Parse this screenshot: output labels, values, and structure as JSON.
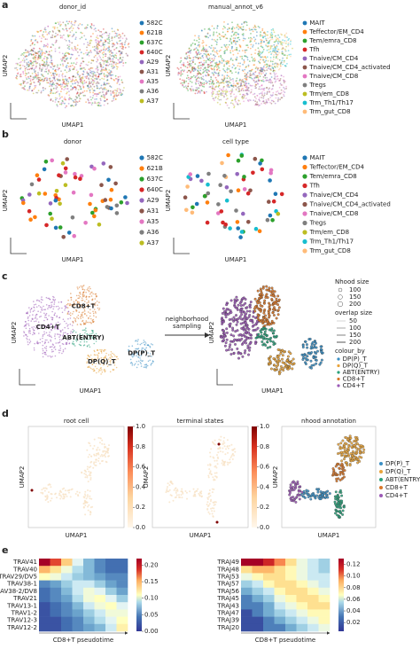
{
  "panels": {
    "a": {
      "label": "a",
      "plots": [
        {
          "title": "donor_id",
          "xlabel": "UMAP1",
          "ylabel": "UMAP2",
          "legend": [
            {
              "name": "582C",
              "color": "#1f77b4"
            },
            {
              "name": "621B",
              "color": "#ff7f0e"
            },
            {
              "name": "637C",
              "color": "#2ca02c"
            },
            {
              "name": "640C",
              "color": "#d62728"
            },
            {
              "name": "A29",
              "color": "#9467bd"
            },
            {
              "name": "A31",
              "color": "#8c564b"
            },
            {
              "name": "A35",
              "color": "#e377c2"
            },
            {
              "name": "A36",
              "color": "#7f7f7f"
            },
            {
              "name": "A37",
              "color": "#bcbd22"
            }
          ]
        },
        {
          "title": "manual_annot_v6",
          "xlabel": "UMAP1",
          "ylabel": "UMAP2",
          "legend": [
            {
              "name": "MAIT",
              "color": "#1f77b4"
            },
            {
              "name": "Teffector/EM_CD4",
              "color": "#ff7f0e"
            },
            {
              "name": "Tem/emra_CD8",
              "color": "#2ca02c"
            },
            {
              "name": "Tfh",
              "color": "#d62728"
            },
            {
              "name": "Tnaive/CM_CD4",
              "color": "#9467bd"
            },
            {
              "name": "Tnaive/CM_CD4_activated",
              "color": "#8c564b"
            },
            {
              "name": "Tnaive/CM_CD8",
              "color": "#e377c2"
            },
            {
              "name": "Tregs",
              "color": "#7f7f7f"
            },
            {
              "name": "Trm/em_CD8",
              "color": "#bcbd22"
            },
            {
              "name": "Trm_Th1/Th17",
              "color": "#17becf"
            },
            {
              "name": "Trm_gut_CD8",
              "color": "#ffbb78"
            }
          ]
        }
      ]
    },
    "b": {
      "label": "b",
      "plots": [
        {
          "title": "donor",
          "xlabel": "UMAP1",
          "ylabel": "UMAP2",
          "legend": [
            {
              "name": "582C",
              "color": "#1f77b4"
            },
            {
              "name": "621B",
              "color": "#ff7f0e"
            },
            {
              "name": "637C",
              "color": "#2ca02c"
            },
            {
              "name": "640C",
              "color": "#d62728"
            },
            {
              "name": "A29",
              "color": "#9467bd"
            },
            {
              "name": "A31",
              "color": "#8c564b"
            },
            {
              "name": "A35",
              "color": "#e377c2"
            },
            {
              "name": "A36",
              "color": "#7f7f7f"
            },
            {
              "name": "A37",
              "color": "#bcbd22"
            }
          ]
        },
        {
          "title": "cell type",
          "xlabel": "UMAP1",
          "ylabel": "UMAP2",
          "legend": [
            {
              "name": "MAIT",
              "color": "#1f77b4"
            },
            {
              "name": "Teffector/EM_CD4",
              "color": "#ff7f0e"
            },
            {
              "name": "Tem/emra_CD8",
              "color": "#2ca02c"
            },
            {
              "name": "Tfh",
              "color": "#d62728"
            },
            {
              "name": "Tnaive/CM_CD4",
              "color": "#9467bd"
            },
            {
              "name": "Tnaive/CM_CD4_activated",
              "color": "#8c564b"
            },
            {
              "name": "Tnaive/CM_CD8",
              "color": "#e377c2"
            },
            {
              "name": "Tregs",
              "color": "#7f7f7f"
            },
            {
              "name": "Trm/em_CD8",
              "color": "#bcbd22"
            },
            {
              "name": "Trm_Th1/Th17",
              "color": "#17becf"
            },
            {
              "name": "Trm_gut_CD8",
              "color": "#ffbb78"
            }
          ]
        }
      ]
    },
    "c": {
      "label": "c",
      "xlabel": "UMAP1",
      "ylabel": "UMAP2",
      "clusters": [
        {
          "name": "CD4+T",
          "color": "#9b59b6"
        },
        {
          "name": "CD8+T",
          "color": "#d9782a"
        },
        {
          "name": "ABT(ENTRY)",
          "color": "#2aa17b"
        },
        {
          "name": "DP(Q)_T",
          "color": "#e8a33a"
        },
        {
          "name": "DP(P)_T",
          "color": "#3a8fc4"
        }
      ],
      "arrow_label": [
        "neighborhood",
        "sampling"
      ],
      "nhood_size": {
        "title": "Nhood size",
        "values": [
          100,
          150,
          200
        ]
      },
      "overlap_size": {
        "title": "overlap size",
        "values": [
          50,
          100,
          150,
          200
        ]
      },
      "colour_by": {
        "title": "colour_by",
        "legend": [
          {
            "name": "DP(P)_T",
            "color": "#3a8fc4"
          },
          {
            "name": "DP(Q)_T",
            "color": "#e8a33a"
          },
          {
            "name": "ABT(ENTRY)",
            "color": "#2aa17b"
          },
          {
            "name": "CD8+T",
            "color": "#d9782a"
          },
          {
            "name": "CD4+T",
            "color": "#9b59b6"
          }
        ]
      }
    },
    "d": {
      "label": "d",
      "xlabel": "UMAP1",
      "ylabel": "UMAP2",
      "plots": [
        {
          "title": "root cell"
        },
        {
          "title": "terminal states"
        },
        {
          "title": "nhood annotation"
        }
      ],
      "colorbar": {
        "lim": [
          0,
          1
        ],
        "ticks": [
          {
            "value": 0,
            "label": "0.0"
          },
          {
            "value": 0.2,
            "label": "0.2"
          },
          {
            "value": 0.4,
            "label": "0.4"
          },
          {
            "value": 0.6,
            "label": "0.6"
          },
          {
            "value": 0.8,
            "label": "0.8"
          },
          {
            "value": 1,
            "label": "1.0"
          }
        ]
      },
      "legend": [
        {
          "name": "DP(P)_T",
          "color": "#3a8fc4"
        },
        {
          "name": "DP(Q)_T",
          "color": "#e8a33a"
        },
        {
          "name": "ABT(ENTRY)",
          "color": "#2aa17b"
        },
        {
          "name": "CD8+T",
          "color": "#d9782a"
        },
        {
          "name": "CD4+T",
          "color": "#9b59b6"
        }
      ]
    },
    "e": {
      "label": "e",
      "heatmaps": [
        {
          "xlabel": "CD8+T pseudotime",
          "clim": [
            0,
            0.22
          ],
          "ticks": [
            {
              "value": 0,
              "label": "0.00"
            },
            {
              "value": 0.05,
              "label": "0.05"
            },
            {
              "value": 0.1,
              "label": "0.10"
            },
            {
              "value": 0.15,
              "label": "0.15"
            },
            {
              "value": 0.2,
              "label": "0.20"
            }
          ],
          "rows": [
            "TRAV41",
            "TRAV40",
            "TRAV29/DV5",
            "TRAV38-1",
            "TRAV38-2/DV8",
            "TRAV21",
            "TRAV13-1",
            "TRAV1-2",
            "TRAV12-3",
            "TRAV12-2"
          ],
          "values": [
            [
              0.22,
              0.19,
              0.14,
              0.09,
              0.05,
              0.03,
              0.02,
              0.02
            ],
            [
              0.15,
              0.13,
              0.1,
              0.07,
              0.05,
              0.03,
              0.02,
              0.02
            ],
            [
              0.11,
              0.1,
              0.08,
              0.06,
              0.05,
              0.04,
              0.03,
              0.03
            ],
            [
              0.03,
              0.04,
              0.06,
              0.08,
              0.08,
              0.06,
              0.04,
              0.03
            ],
            [
              0.02,
              0.03,
              0.05,
              0.08,
              0.1,
              0.09,
              0.06,
              0.04
            ],
            [
              0.02,
              0.03,
              0.04,
              0.07,
              0.1,
              0.11,
              0.09,
              0.06
            ],
            [
              0.01,
              0.02,
              0.03,
              0.05,
              0.08,
              0.1,
              0.11,
              0.09
            ],
            [
              0.01,
              0.02,
              0.03,
              0.04,
              0.06,
              0.08,
              0.1,
              0.1
            ],
            [
              0.01,
              0.01,
              0.02,
              0.03,
              0.05,
              0.07,
              0.09,
              0.11
            ],
            [
              0.01,
              0.01,
              0.02,
              0.03,
              0.04,
              0.05,
              0.08,
              0.12
            ]
          ]
        },
        {
          "xlabel": "CD8+T pseudotime",
          "clim": [
            0.005,
            0.13
          ],
          "ticks": [
            {
              "value": 0.02,
              "label": "0.02"
            },
            {
              "value": 0.04,
              "label": "0.04"
            },
            {
              "value": 0.06,
              "label": "0.06"
            },
            {
              "value": 0.08,
              "label": "0.08"
            },
            {
              "value": 0.1,
              "label": "0.10"
            },
            {
              "value": 0.12,
              "label": "0.12"
            }
          ],
          "rows": [
            "TRAJ49",
            "TRAJ48",
            "TRAJ53",
            "TRAJ57",
            "TRAJ56",
            "TRAJ45",
            "TRAJ43",
            "TRAJ47",
            "TRAJ39",
            "TRAJ20"
          ],
          "values": [
            [
              0.13,
              0.13,
              0.12,
              0.1,
              0.08,
              0.06,
              0.05,
              0.04
            ],
            [
              0.08,
              0.09,
              0.09,
              0.08,
              0.07,
              0.06,
              0.05,
              0.04
            ],
            [
              0.06,
              0.07,
              0.08,
              0.08,
              0.07,
              0.06,
              0.05,
              0.05
            ],
            [
              0.04,
              0.05,
              0.07,
              0.08,
              0.08,
              0.07,
              0.06,
              0.05
            ],
            [
              0.03,
              0.04,
              0.05,
              0.07,
              0.08,
              0.08,
              0.07,
              0.06
            ],
            [
              0.02,
              0.03,
              0.04,
              0.06,
              0.07,
              0.08,
              0.08,
              0.07
            ],
            [
              0.02,
              0.02,
              0.03,
              0.05,
              0.06,
              0.07,
              0.08,
              0.08
            ],
            [
              0.01,
              0.02,
              0.03,
              0.04,
              0.05,
              0.06,
              0.07,
              0.07
            ],
            [
              0.01,
              0.01,
              0.02,
              0.03,
              0.04,
              0.05,
              0.06,
              0.07
            ],
            [
              0.01,
              0.01,
              0.02,
              0.02,
              0.03,
              0.04,
              0.05,
              0.06
            ]
          ]
        }
      ]
    }
  }
}
